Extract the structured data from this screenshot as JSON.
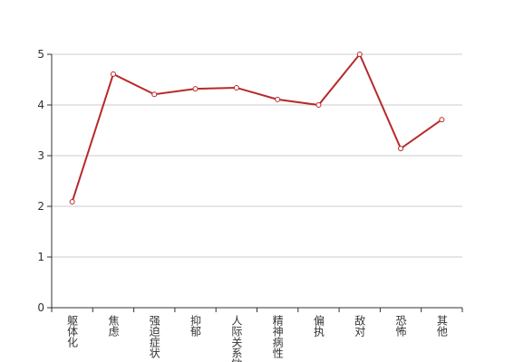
{
  "chart_data": {
    "type": "line",
    "categories": [
      "躯体化",
      "焦虑",
      "强迫症状",
      "抑郁",
      "人际关系敏感",
      "精神病性",
      "偏执",
      "敌对",
      "恐怖",
      "其他"
    ],
    "series": [
      {
        "color": "#b8292b",
        "values": [
          2.09,
          4.61,
          4.21,
          4.32,
          4.34,
          4.11,
          4.0,
          5.0,
          3.14,
          3.71
        ]
      }
    ],
    "ylim": [
      0,
      5
    ],
    "yticks": [
      0,
      1,
      2,
      3,
      4,
      5
    ],
    "grid": true
  }
}
